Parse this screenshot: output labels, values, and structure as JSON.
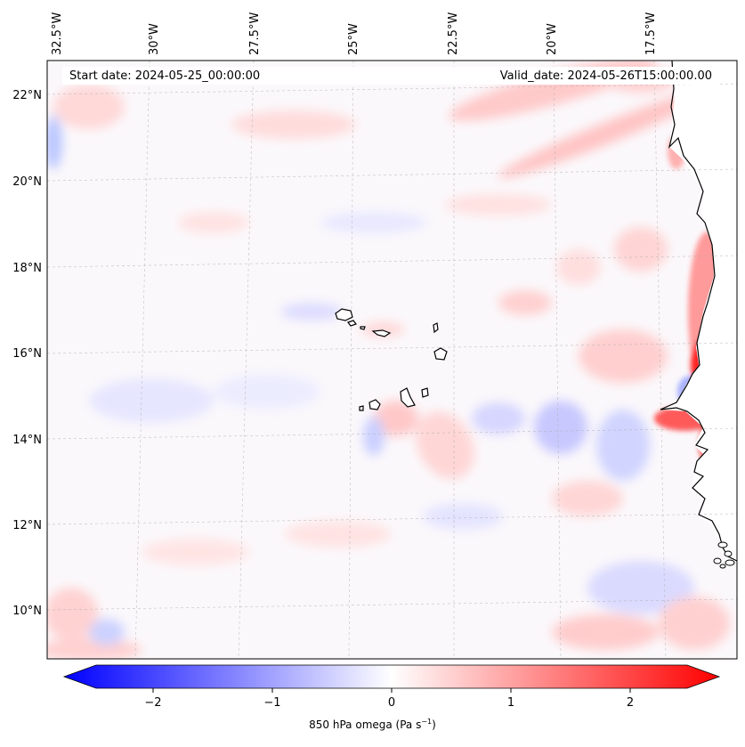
{
  "title_left": "Start date: 2024-05-25_00:00:00",
  "title_right": "Valid_date: 2024-05-26T15:00:00.00",
  "top_lon_labels": [
    "32.5°W",
    "30°W",
    "27.5°W",
    "25°W",
    "22.5°W",
    "20°W",
    "17.5°W"
  ],
  "left_lat_labels": [
    "22°N",
    "20°N",
    "18°N",
    "16°N",
    "14°N",
    "12°N",
    "10°N"
  ],
  "colorbar": {
    "label": "850 hPa omega (Pa s",
    "label_sup": "−1",
    "label_end": ")",
    "ticks": [
      "−2",
      "−1",
      "0",
      "1",
      "2"
    ],
    "min": -2.6,
    "max": 2.6,
    "cmap": "bwr",
    "low_color": "#0000ff",
    "mid_color": "#ffffff",
    "high_color": "#ff0000"
  },
  "map": {
    "variable": "850 hPa omega",
    "lon_range": [
      "32.5°W",
      "15.5°W"
    ],
    "lat_range": [
      "9°N",
      "22.8°N"
    ],
    "land_color": "#ffffff",
    "coastline_color": "#000000",
    "gridlines": true
  }
}
